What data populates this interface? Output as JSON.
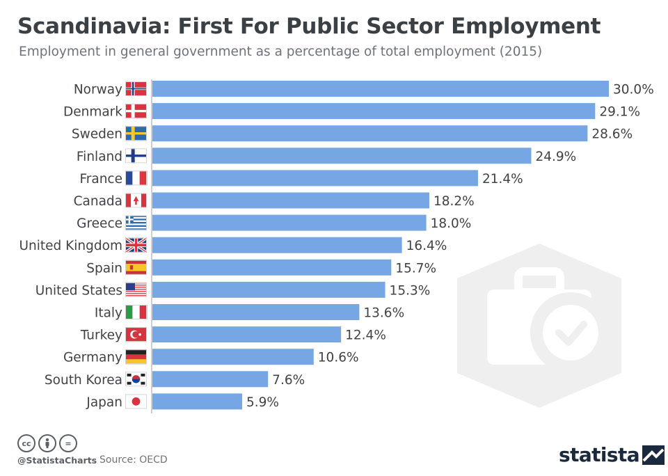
{
  "title": "Scandinavia: First For Public Sector Employment",
  "subtitle": "Employment in general government as a percentage of total employment (2015)",
  "footer": {
    "cc_icons": [
      "cc-icon",
      "by-icon",
      "nd-icon"
    ],
    "cc_labels": [
      "cc",
      "",
      "="
    ],
    "handle": "@StatistaCharts",
    "source": "Source: OECD",
    "brand": "statista"
  },
  "colors": {
    "bar": "#76a7e4",
    "title": "#3b4045",
    "text": "#3f4347",
    "watermark": "#eeeeee"
  },
  "chart_data": {
    "type": "bar",
    "orientation": "horizontal",
    "title": "Scandinavia: First For Public Sector Employment",
    "subtitle": "Employment in general government as a percentage of total employment (2015)",
    "categories": [
      "Norway",
      "Denmark",
      "Sweden",
      "Finland",
      "France",
      "Canada",
      "Greece",
      "United Kingdom",
      "Spain",
      "United States",
      "Italy",
      "Turkey",
      "Germany",
      "South Korea",
      "Japan"
    ],
    "values": [
      30.0,
      29.1,
      28.6,
      24.9,
      21.4,
      18.2,
      18.0,
      16.4,
      15.7,
      15.3,
      13.6,
      12.4,
      10.6,
      7.6,
      5.9
    ],
    "labels": [
      "30.0%",
      "29.1%",
      "28.6%",
      "24.9%",
      "21.4%",
      "18.2%",
      "18.0%",
      "16.4%",
      "15.7%",
      "15.3%",
      "13.6%",
      "12.4%",
      "10.6%",
      "7.6%",
      "5.9%"
    ],
    "flags": [
      "flag-norway-icon",
      "flag-denmark-icon",
      "flag-sweden-icon",
      "flag-finland-icon",
      "flag-france-icon",
      "flag-canada-icon",
      "flag-greece-icon",
      "flag-united-kingdom-icon",
      "flag-spain-icon",
      "flag-united-states-icon",
      "flag-italy-icon",
      "flag-turkey-icon",
      "flag-germany-icon",
      "flag-south-korea-icon",
      "flag-japan-icon"
    ],
    "xlim": [
      0,
      30.0
    ],
    "xlabel": "",
    "ylabel": "",
    "grid": false,
    "legend": "none"
  }
}
